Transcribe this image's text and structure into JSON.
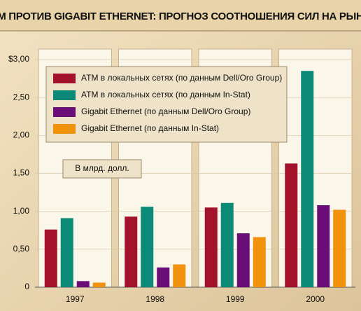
{
  "chart_data": {
    "type": "bar",
    "title": "ATM ПРОТИВ GIGABIT ETHERNET: ПРОГНОЗ СООТНОШЕНИЯ СИЛ НА РЫНКЕ",
    "annotation": "В млрд. долл.",
    "categories": [
      "1997",
      "1998",
      "1999",
      "2000"
    ],
    "series": [
      {
        "name": "ATM в локальных сетях (по данным Dell/Oro Group)",
        "color": "#a3122a",
        "values": [
          0.76,
          0.93,
          1.05,
          1.63
        ]
      },
      {
        "name": "ATM в локальных сетях (по данным In-Stat)",
        "color": "#0c8a78",
        "values": [
          0.91,
          1.06,
          1.11,
          2.85
        ]
      },
      {
        "name": "Gigabit Ethernet (по данным Dell/Oro Group)",
        "color": "#6b0d78",
        "values": [
          0.08,
          0.26,
          0.71,
          1.08
        ]
      },
      {
        "name": "Gigabit Ethernet (по данным In-Stat)",
        "color": "#f0920c",
        "values": [
          0.06,
          0.3,
          0.66,
          1.02
        ]
      }
    ],
    "ylim": [
      0,
      3
    ],
    "yticks": [
      {
        "value": 0,
        "label": "0"
      },
      {
        "value": 0.5,
        "label": "0,50"
      },
      {
        "value": 1,
        "label": "1,00"
      },
      {
        "value": 1.5,
        "label": "1,50"
      },
      {
        "value": 2,
        "label": "2,00"
      },
      {
        "value": 2.5,
        "label": "2,50"
      },
      {
        "value": 3,
        "label": "$3,00"
      }
    ],
    "grid": true
  }
}
